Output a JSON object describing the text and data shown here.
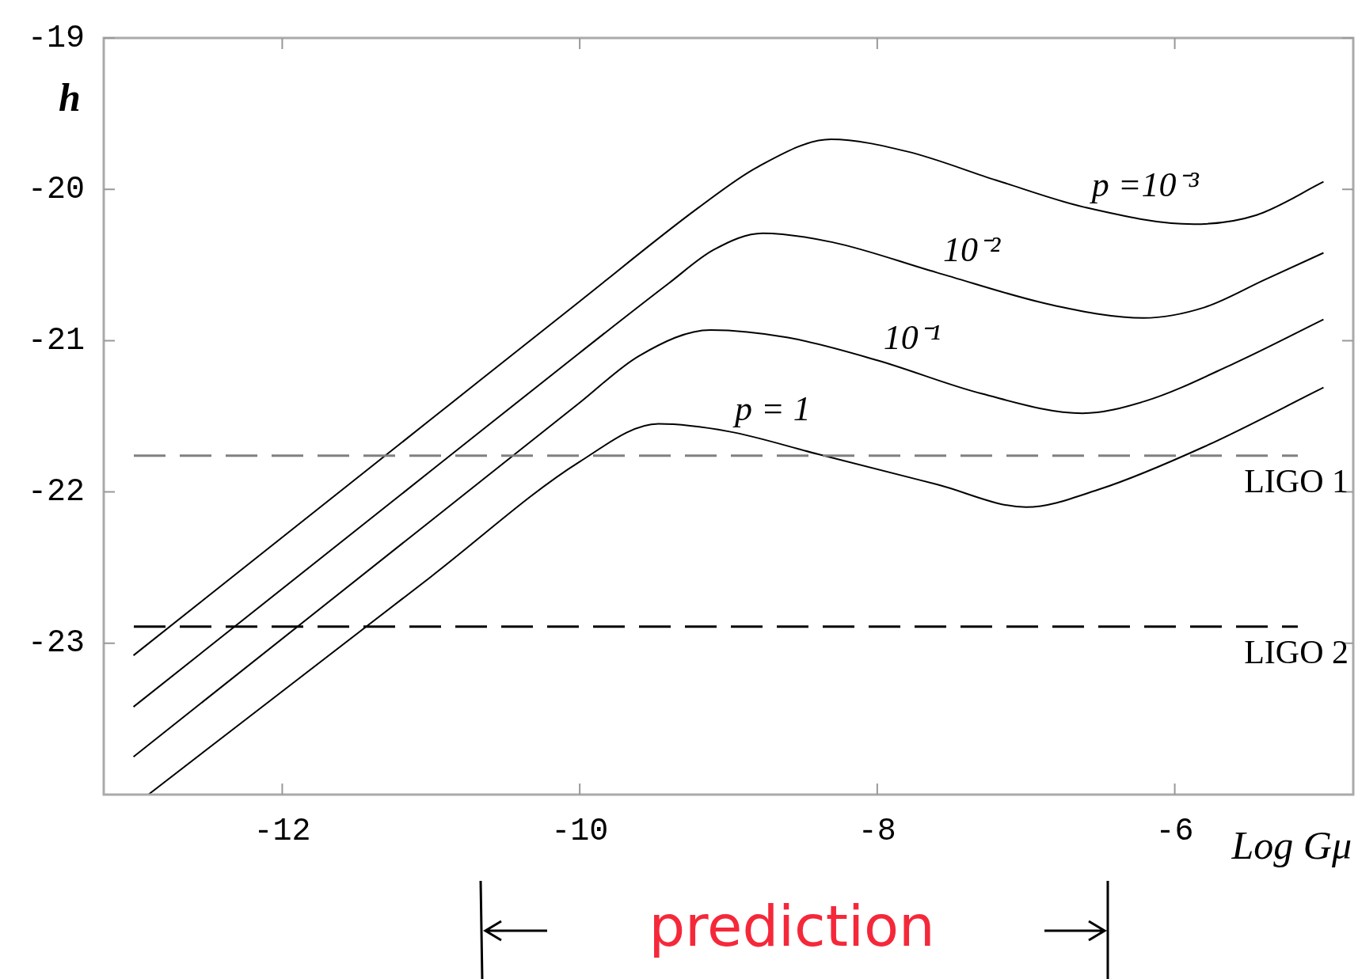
{
  "chart_data": {
    "type": "line",
    "xlabel": "Log Gμ",
    "ylabel": "h",
    "xlim": [
      -13.2,
      -4.8
    ],
    "xticks": [
      -12,
      -10,
      -8,
      -6
    ],
    "ylim": [
      -24,
      -19
    ],
    "yticks": [
      -23,
      -22,
      -21,
      -20,
      -19
    ],
    "grid": false,
    "legend": false,
    "marker": "none",
    "line_style": "solid",
    "series": [
      {
        "name": "p =10⁻³",
        "color": "#000000",
        "x": [
          -13,
          -11,
          -10,
          -9.2,
          -8.8,
          -8.31,
          -7.8,
          -7.2,
          -6.6,
          -5.87,
          -5.45,
          -5.0
        ],
        "values": [
          -23.08,
          -21.52,
          -20.74,
          -20.12,
          -19.85,
          -19.67,
          -19.75,
          -19.94,
          -20.12,
          -20.23,
          -20.17,
          -19.95
        ]
      },
      {
        "name": "10⁻²",
        "color": "#000000",
        "x": [
          -13,
          -11,
          -10,
          -9.4,
          -9.1,
          -8.77,
          -8.3,
          -7.6,
          -6.8,
          -6.21,
          -5.8,
          -5.4,
          -5.0
        ],
        "values": [
          -23.42,
          -21.86,
          -21.08,
          -20.62,
          -20.4,
          -20.29,
          -20.35,
          -20.55,
          -20.77,
          -20.85,
          -20.78,
          -20.6,
          -20.42
        ]
      },
      {
        "name": "10⁻¹",
        "color": "#000000",
        "x": [
          -13,
          -11,
          -10,
          -9.6,
          -9.12,
          -8.6,
          -8,
          -7.3,
          -6.62,
          -6.2,
          -5.6,
          -5.0
        ],
        "values": [
          -23.75,
          -22.19,
          -21.41,
          -21.1,
          -20.93,
          -20.98,
          -21.13,
          -21.35,
          -21.48,
          -21.4,
          -21.15,
          -20.86
        ]
      },
      {
        "name": "p = 1",
        "color": "#000000",
        "x": [
          -12.9,
          -11,
          -10,
          -9.47,
          -9,
          -8.4,
          -7.6,
          -7.0,
          -6.5,
          -5.8,
          -5.0
        ],
        "values": [
          -24.0,
          -22.56,
          -21.8,
          -21.55,
          -21.6,
          -21.75,
          -21.95,
          -22.1,
          -21.98,
          -21.7,
          -21.31
        ]
      }
    ],
    "ref_lines": [
      {
        "axis": "y",
        "value": -21.76,
        "label": "LIGO 1",
        "color": "#808080",
        "line_style": "dashed"
      },
      {
        "axis": "y",
        "value": -22.89,
        "label": "LIGO 2",
        "color": "#000000",
        "line_style": "dashed"
      }
    ],
    "annotations": [
      "prediction"
    ]
  }
}
